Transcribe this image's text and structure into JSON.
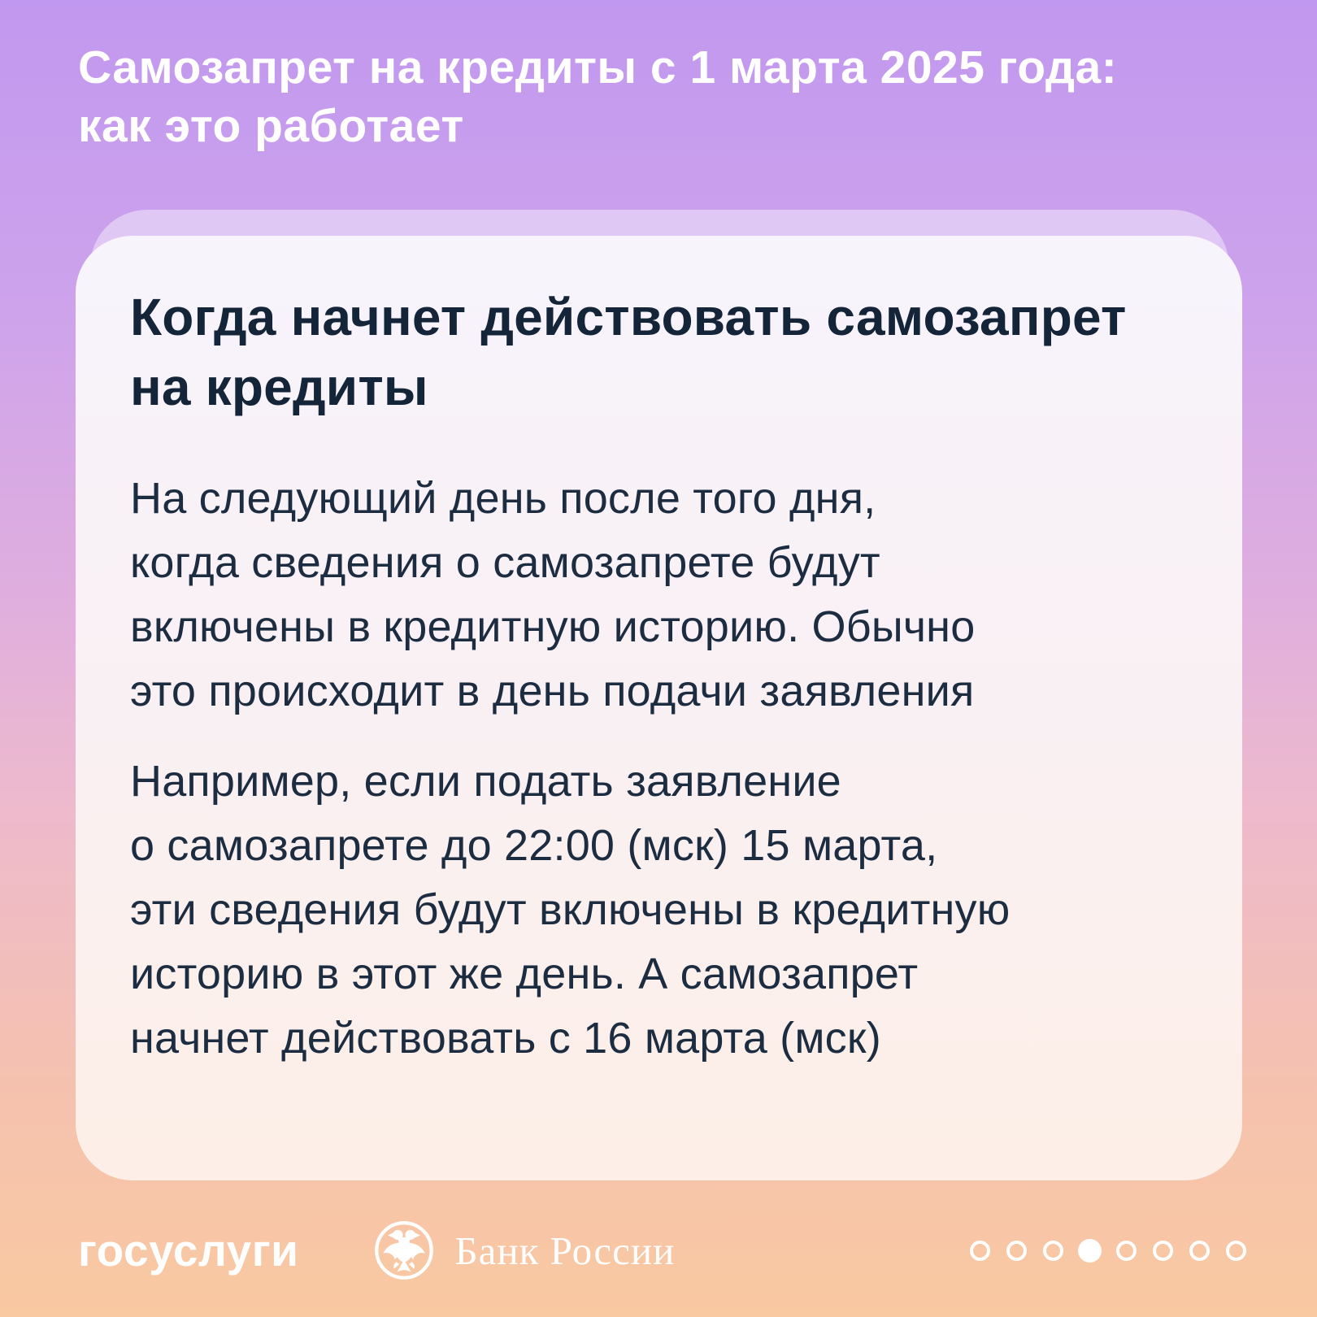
{
  "header": {
    "title": "Самозапрет на кредиты с 1 марта 2025 года:\nкак это работает"
  },
  "card": {
    "heading": "Когда начнет действовать самозапрет\nна кредиты",
    "paragraphs": [
      "На следующий день после того дня,\nкогда сведения о самозапрете будут\nвключены в кредитную историю. Обычно\nэто происходит в день подачи заявления",
      "Например, если подать заявление\nо самозапрете до 22:00 (мск) 15 марта,\nэти сведения будут включены в кредитную\nисторию в этот же день. А самозапрет\nначнет действовать с 16 марта (мск)"
    ]
  },
  "footer": {
    "gosuslugi_label": "госуслуги",
    "bank_label": "Банк России",
    "bank_logo_icon": "double-headed-eagle-icon",
    "pagination": {
      "total": 8,
      "active_index": 3
    }
  },
  "colors": {
    "bg_top": "#c198ef",
    "bg_middle": "#eebacc",
    "bg_bottom": "#f9c9a1",
    "card_bg_top": "#f8f4fc",
    "card_bg_bottom": "#fdefe7",
    "card_back_layer": "rgba(255,255,255,0.42)",
    "heading_text": "#142539",
    "body_text": "#1d2d41",
    "light_text": "#ffffff"
  }
}
